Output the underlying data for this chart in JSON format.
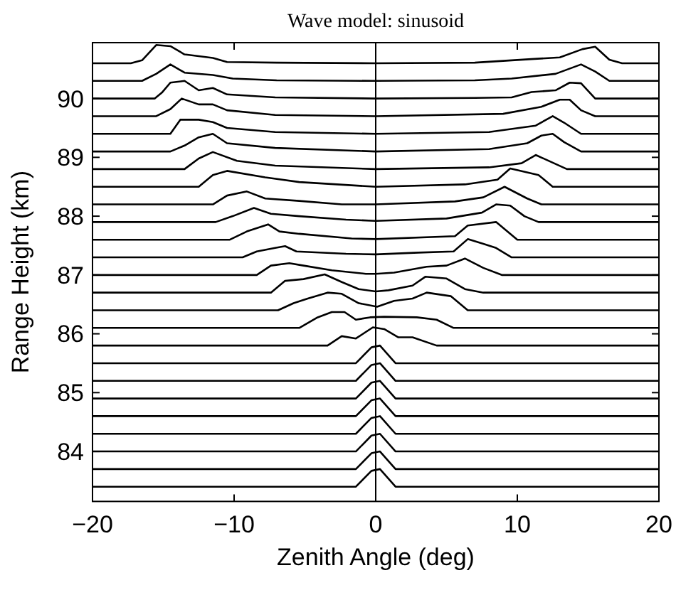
{
  "chart_data": {
    "type": "line",
    "title": "Wave model: sinusoid",
    "xlabel": "Zenith Angle (deg)",
    "ylabel": "Range Height (km)",
    "xlim": [
      -20,
      20
    ],
    "xticks": [
      {
        "value": -20,
        "label": "−20"
      },
      {
        "value": -10,
        "label": "−10"
      },
      0,
      10,
      20
    ],
    "ylim": [
      83.15,
      90.95
    ],
    "yticks": [
      84,
      85,
      86,
      87,
      88,
      89,
      90
    ],
    "grid": false,
    "marker": "none",
    "line_style": "solid",
    "ref_lines": [
      {
        "axis": "x",
        "value": 0,
        "color": "#000000"
      }
    ],
    "series": [
      {
        "color": "#000000",
        "x": [
          -20,
          -17.3,
          -16.5,
          -15.5,
          -14.5,
          -13.5,
          -11.5,
          -10.5,
          -7,
          0,
          7,
          11,
          13,
          14.6,
          15.5,
          16.5,
          17.4,
          20
        ],
        "values": [
          90.6,
          90.6,
          90.65,
          90.91,
          90.89,
          90.75,
          90.69,
          90.62,
          90.61,
          90.6,
          90.61,
          90.67,
          90.7,
          90.84,
          90.88,
          90.66,
          90.6,
          90.6
        ]
      },
      {
        "color": "#000000",
        "x": [
          -20,
          -16.5,
          -15.5,
          -14.5,
          -13.5,
          -11.5,
          -10.1,
          -7,
          0,
          7,
          9.6,
          12.7,
          14.5,
          15.5,
          16.5,
          20
        ],
        "values": [
          90.3,
          90.3,
          90.42,
          90.58,
          90.44,
          90.4,
          90.34,
          90.31,
          90.3,
          90.31,
          90.34,
          90.42,
          90.58,
          90.46,
          90.3,
          90.3
        ]
      },
      {
        "color": "#000000",
        "x": [
          -20,
          -15.6,
          -15.1,
          -14.5,
          -13.5,
          -12.5,
          -11.5,
          -10.5,
          -7.1,
          0,
          7,
          9.6,
          11,
          12.7,
          13.7,
          14.5,
          15.5,
          20
        ],
        "values": [
          90,
          90,
          90.1,
          90.27,
          90.3,
          90.14,
          90.18,
          90.07,
          90.02,
          90,
          90.01,
          90.02,
          90.11,
          90.14,
          90.27,
          90.26,
          90,
          90
        ]
      },
      {
        "color": "#000000",
        "x": [
          -20,
          -15.5,
          -14.5,
          -13.7,
          -12.5,
          -11.5,
          -10.5,
          -7.1,
          0,
          9,
          11.7,
          13,
          13.7,
          14.5,
          15.5,
          20
        ],
        "values": [
          89.7,
          89.7,
          89.82,
          90,
          89.9,
          89.9,
          89.8,
          89.72,
          89.7,
          89.74,
          89.86,
          89.98,
          89.98,
          89.8,
          89.7,
          89.7
        ]
      },
      {
        "color": "#000000",
        "x": [
          -20,
          -14.5,
          -13.8,
          -12.5,
          -11.5,
          -10.5,
          -7.1,
          0,
          8,
          11.3,
          12.5,
          13.3,
          14.5,
          20
        ],
        "values": [
          89.4,
          89.4,
          89.64,
          89.64,
          89.6,
          89.5,
          89.43,
          89.4,
          89.43,
          89.54,
          89.7,
          89.59,
          89.4,
          89.4
        ]
      },
      {
        "color": "#000000",
        "x": [
          -20,
          -14.5,
          -13.5,
          -12.5,
          -11.5,
          -10.5,
          -7.1,
          0,
          8,
          10.7,
          11.7,
          12.5,
          13.3,
          14.5,
          20
        ],
        "values": [
          89.1,
          89.1,
          89.2,
          89.34,
          89.4,
          89.24,
          89.16,
          89.1,
          89.14,
          89.24,
          89.37,
          89.4,
          89.26,
          89.1,
          89.1
        ]
      },
      {
        "color": "#000000",
        "x": [
          -20,
          -13.5,
          -12.5,
          -11.5,
          -9.8,
          -7.1,
          0,
          8,
          10.3,
          11.3,
          13.5,
          20
        ],
        "values": [
          88.8,
          88.8,
          88.98,
          89.09,
          88.94,
          88.86,
          88.8,
          88.83,
          88.9,
          89.04,
          88.8,
          88.8
        ]
      },
      {
        "color": "#000000",
        "x": [
          -20,
          -12.5,
          -11.5,
          -10.5,
          -7.8,
          -5.4,
          0,
          6.3,
          8.6,
          9.5,
          11.5,
          12.5,
          20
        ],
        "values": [
          88.5,
          88.5,
          88.7,
          88.77,
          88.66,
          88.58,
          88.5,
          88.54,
          88.62,
          88.81,
          88.7,
          88.5,
          88.5
        ]
      },
      {
        "color": "#000000",
        "x": [
          -20,
          -11.5,
          -10.5,
          -9.1,
          -7.8,
          -5.4,
          -2.4,
          0,
          5.6,
          7.6,
          9.1,
          10.7,
          11.7,
          20
        ],
        "values": [
          88.2,
          88.2,
          88.35,
          88.42,
          88.3,
          88.26,
          88.2,
          88.2,
          88.25,
          88.32,
          88.5,
          88.3,
          88.2,
          88.2
        ]
      },
      {
        "color": "#000000",
        "x": [
          -20,
          -11.3,
          -10.1,
          -8.6,
          -7.4,
          -5.4,
          -2.1,
          0,
          5,
          7.5,
          8.5,
          9.5,
          10.5,
          11.5,
          20
        ],
        "values": [
          87.9,
          87.9,
          88,
          88.14,
          88.04,
          88,
          87.94,
          87.92,
          87.96,
          88.06,
          88.2,
          88.18,
          88,
          87.9,
          87.9
        ]
      },
      {
        "color": "#000000",
        "x": [
          -20,
          -10.3,
          -9.1,
          -7.6,
          -6.8,
          -5.4,
          -1.7,
          0,
          5.6,
          6.5,
          8.5,
          10,
          20
        ],
        "values": [
          87.6,
          87.6,
          87.74,
          87.86,
          87.74,
          87.7,
          87.62,
          87.61,
          87.66,
          87.84,
          87.9,
          87.6,
          87.6
        ]
      },
      {
        "color": "#000000",
        "x": [
          -20,
          -9.4,
          -8.4,
          -7.1,
          -6.4,
          -5.6,
          -2.1,
          0,
          3,
          5.5,
          6.5,
          7.6,
          8.5,
          9.6,
          20
        ],
        "values": [
          87.3,
          87.3,
          87.4,
          87.46,
          87.49,
          87.4,
          87.36,
          87.35,
          87.38,
          87.4,
          87.61,
          87.53,
          87.46,
          87.3,
          87.3
        ]
      },
      {
        "color": "#000000",
        "x": [
          -20,
          -8.4,
          -7.4,
          -6.1,
          -5.1,
          -3.1,
          -0.7,
          0,
          1.3,
          3.6,
          5,
          6.3,
          7.6,
          8.9,
          20
        ],
        "values": [
          87,
          87,
          87.16,
          87.2,
          87.16,
          87.08,
          87.02,
          87.02,
          87.04,
          87.14,
          87.16,
          87.28,
          87.12,
          87,
          87
        ]
      },
      {
        "color": "#000000",
        "x": [
          -20,
          -7.4,
          -6.4,
          -5.1,
          -3.6,
          -2.4,
          -1.2,
          0,
          0.9,
          2.6,
          3.5,
          5,
          6.3,
          7.6,
          20
        ],
        "values": [
          86.7,
          86.7,
          86.9,
          86.93,
          87.01,
          86.88,
          86.76,
          86.72,
          86.74,
          86.82,
          86.97,
          86.94,
          86.76,
          86.7,
          86.7
        ]
      },
      {
        "color": "#000000",
        "x": [
          -20,
          -6.9,
          -5.8,
          -4.8,
          -3.4,
          -2.4,
          -1.2,
          0.1,
          1.3,
          2.6,
          3.6,
          5.3,
          6.5,
          20
        ],
        "values": [
          86.4,
          86.4,
          86.52,
          86.6,
          86.7,
          86.68,
          86.52,
          86.46,
          86.56,
          86.6,
          86.7,
          86.64,
          86.4,
          86.4
        ]
      },
      {
        "color": "#000000",
        "x": [
          -20,
          -5.4,
          -4.1,
          -3.1,
          -2.2,
          -1.4,
          -0.4,
          0.6,
          2.9,
          4.3,
          5.5,
          20
        ],
        "values": [
          86.1,
          86.1,
          86.28,
          86.37,
          86.37,
          86.24,
          86.28,
          86.29,
          86.28,
          86.24,
          86.1,
          86.1
        ]
      },
      {
        "color": "#000000",
        "x": [
          -20,
          -3.4,
          -2.4,
          -1.4,
          -0.2,
          0.6,
          1.6,
          2.6,
          4.3,
          20
        ],
        "values": [
          85.8,
          85.8,
          85.96,
          85.92,
          86.11,
          86.08,
          85.94,
          85.94,
          85.8,
          85.8
        ]
      },
      {
        "color": "#000000",
        "x": [
          -20,
          -1.4,
          -0.3,
          0.3,
          1.4,
          20
        ],
        "values": [
          85.5,
          85.5,
          85.77,
          85.8,
          85.5,
          85.5
        ]
      },
      {
        "color": "#000000",
        "x": [
          -20,
          -1.4,
          -0.3,
          0.3,
          1.4,
          20
        ],
        "values": [
          85.2,
          85.2,
          85.47,
          85.5,
          85.2,
          85.2
        ]
      },
      {
        "color": "#000000",
        "x": [
          -20,
          -1.4,
          -0.3,
          0.3,
          1.4,
          20
        ],
        "values": [
          84.9,
          84.9,
          85.17,
          85.2,
          84.9,
          84.9
        ]
      },
      {
        "color": "#000000",
        "x": [
          -20,
          -1.4,
          -0.3,
          0.3,
          1.4,
          20
        ],
        "values": [
          84.6,
          84.6,
          84.87,
          84.9,
          84.6,
          84.6
        ]
      },
      {
        "color": "#000000",
        "x": [
          -20,
          -1.4,
          -0.3,
          0.3,
          1.4,
          20
        ],
        "values": [
          84.3,
          84.3,
          84.57,
          84.6,
          84.3,
          84.3
        ]
      },
      {
        "color": "#000000",
        "x": [
          -20,
          -1.4,
          -0.3,
          0.3,
          1.4,
          20
        ],
        "values": [
          84,
          84,
          84.27,
          84.3,
          84,
          84
        ]
      },
      {
        "color": "#000000",
        "x": [
          -20,
          -1.4,
          -0.3,
          0.3,
          1.4,
          20
        ],
        "values": [
          83.7,
          83.7,
          83.97,
          84,
          83.7,
          83.7
        ]
      },
      {
        "color": "#000000",
        "x": [
          -20,
          -1.4,
          -0.3,
          0.3,
          1.4,
          20
        ],
        "values": [
          83.4,
          83.4,
          83.67,
          83.7,
          83.4,
          83.4
        ]
      }
    ]
  }
}
